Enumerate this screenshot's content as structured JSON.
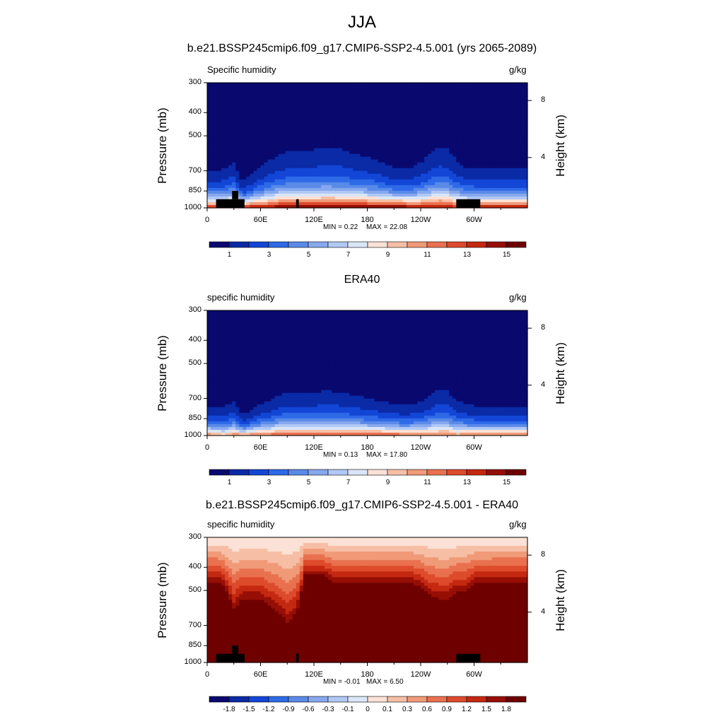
{
  "figure_title": "JJA",
  "chart_data": [
    {
      "type": "heatmap",
      "title": "b.e21.BSSP245cmip6.f09_g17.CMIP6-SSP2-4.5.001 (yrs 2065-2089)",
      "field_label": "Specific humidity",
      "units": "g/kg",
      "ylabel": "Pressure (mb)",
      "ylabel_right": "Height (km)",
      "xlim": [
        0,
        360
      ],
      "x_ticks": [
        "0",
        "60E",
        "120E",
        "180",
        "120W",
        "60W"
      ],
      "x_tick_values": [
        0,
        60,
        120,
        180,
        240,
        300
      ],
      "y_ticks": [
        "300",
        "400",
        "500",
        "700",
        "850",
        "1000"
      ],
      "y_tick_values": [
        300,
        400,
        500,
        700,
        850,
        1000
      ],
      "right_ticks": [
        "8",
        "4"
      ],
      "min_label": "MIN =   0.22",
      "max_label": "MAX =  22.08",
      "colorbar": {
        "levels": [
          0,
          1,
          2,
          3,
          4,
          5,
          6,
          7,
          8,
          9,
          10,
          11,
          12,
          13,
          14,
          15
        ],
        "labels": [
          "1",
          "3",
          "5",
          "7",
          "9",
          "11",
          "13",
          "15"
        ],
        "label_values": [
          1,
          3,
          5,
          7,
          9,
          11,
          13,
          15
        ]
      },
      "profile": {
        "lon": [
          0,
          10,
          20,
          30,
          40,
          50,
          60,
          70,
          80,
          90,
          100,
          110,
          120,
          130,
          140,
          150,
          160,
          170,
          180,
          190,
          200,
          210,
          220,
          230,
          240,
          250,
          260,
          270,
          280,
          290,
          300,
          310,
          320,
          330,
          340,
          350,
          360
        ],
        "surface_q": [
          14,
          14,
          14,
          15,
          14,
          15,
          15,
          15,
          16,
          16,
          16,
          16,
          16,
          16,
          16,
          16,
          16,
          16,
          16,
          16,
          16,
          16,
          16,
          15,
          15,
          15,
          15,
          15,
          14,
          15,
          15,
          15,
          15,
          15,
          15,
          15,
          15
        ],
        "scale_height_mb": [
          230,
          230,
          240,
          260,
          170,
          200,
          240,
          270,
          290,
          300,
          300,
          300,
          310,
          320,
          320,
          315,
          300,
          290,
          280,
          270,
          250,
          230,
          230,
          240,
          260,
          300,
          330,
          320,
          280,
          240,
          230,
          230,
          230,
          230,
          230,
          230,
          230
        ]
      },
      "blocks": [
        {
          "lon": [
            10,
            42
          ],
          "p_top": 920,
          "p_bot": 1000
        },
        {
          "lon": [
            28,
            35
          ],
          "p_top": 850,
          "p_bot": 920
        },
        {
          "lon": [
            100,
            103
          ],
          "p_top": 920,
          "p_bot": 1000
        },
        {
          "lon": [
            280,
            307
          ],
          "p_top": 920,
          "p_bot": 1000
        }
      ]
    },
    {
      "type": "heatmap",
      "title": "ERA40",
      "field_label": "specific humidity",
      "units": "g/kg",
      "ylabel": "Pressure (mb)",
      "ylabel_right": "Height (km)",
      "xlim": [
        0,
        360
      ],
      "x_ticks": [
        "0",
        "60E",
        "120E",
        "180",
        "120W",
        "60W"
      ],
      "x_tick_values": [
        0,
        60,
        120,
        180,
        240,
        300
      ],
      "y_ticks": [
        "300",
        "400",
        "500",
        "700",
        "850",
        "1000"
      ],
      "y_tick_values": [
        300,
        400,
        500,
        700,
        850,
        1000
      ],
      "right_ticks": [
        "8",
        "4"
      ],
      "min_label": "MIN =   0.13",
      "max_label": "MAX =  17.80",
      "colorbar": {
        "levels": [
          0,
          1,
          2,
          3,
          4,
          5,
          6,
          7,
          8,
          9,
          10,
          11,
          12,
          13,
          14,
          15
        ],
        "labels": [
          "1",
          "3",
          "5",
          "7",
          "9",
          "11",
          "13",
          "15"
        ],
        "label_values": [
          1,
          3,
          5,
          7,
          9,
          11,
          13,
          15
        ]
      },
      "profile": {
        "lon": [
          0,
          10,
          20,
          30,
          40,
          50,
          60,
          70,
          80,
          90,
          100,
          110,
          120,
          130,
          140,
          150,
          160,
          170,
          180,
          190,
          200,
          210,
          220,
          230,
          240,
          250,
          260,
          270,
          280,
          290,
          300,
          310,
          320,
          330,
          340,
          350,
          360
        ],
        "surface_q": [
          12,
          11,
          10,
          12,
          11,
          12,
          12,
          12,
          13,
          13,
          13,
          13,
          13,
          13,
          13,
          13,
          13,
          13,
          13,
          13,
          13,
          13,
          12,
          12,
          12,
          12,
          12,
          12,
          11,
          12,
          12,
          12,
          12,
          12,
          12,
          12,
          12
        ],
        "scale_height_mb": [
          200,
          200,
          210,
          230,
          150,
          180,
          210,
          230,
          250,
          260,
          260,
          260,
          265,
          270,
          270,
          265,
          255,
          245,
          235,
          225,
          215,
          205,
          200,
          210,
          225,
          255,
          285,
          280,
          240,
          210,
          200,
          200,
          200,
          200,
          200,
          200,
          200
        ]
      },
      "blocks": []
    },
    {
      "type": "heatmap",
      "title": "b.e21.BSSP245cmip6.f09_g17.CMIP6-SSP2-4.5.001 - ERA40",
      "field_label": "specific humidity",
      "units": "g/kg",
      "ylabel": "Pressure (mb)",
      "ylabel_right": "Height (km)",
      "xlim": [
        0,
        360
      ],
      "x_ticks": [
        "0",
        "60E",
        "120E",
        "180",
        "120W",
        "60W"
      ],
      "x_tick_values": [
        0,
        60,
        120,
        180,
        240,
        300
      ],
      "y_ticks": [
        "300",
        "400",
        "500",
        "700",
        "850",
        "1000"
      ],
      "y_tick_values": [
        300,
        400,
        500,
        700,
        850,
        1000
      ],
      "right_ticks": [
        "8",
        "4"
      ],
      "min_label": "MIN =  -0.01",
      "max_label": "MAX =   6.50",
      "colorbar": {
        "levels": [
          -2.1,
          -1.8,
          -1.5,
          -1.2,
          -0.9,
          -0.6,
          -0.3,
          -0.1,
          0,
          0.1,
          0.3,
          0.6,
          0.9,
          1.2,
          1.5,
          1.8
        ],
        "labels": [
          "-1.8",
          "-1.5",
          "-1.2",
          "-0.9",
          "-0.6",
          "-0.3",
          "-0.1",
          "0",
          "0.1",
          "0.3",
          "0.6",
          "0.9",
          "1.2",
          "1.5",
          "1.8"
        ],
        "label_values": [
          -1.8,
          -1.5,
          -1.2,
          -0.9,
          -0.6,
          -0.3,
          -0.1,
          0,
          0.1,
          0.3,
          0.6,
          0.9,
          1.2,
          1.5,
          1.8
        ]
      },
      "diff_profile": {
        "lon": [
          0,
          10,
          20,
          30,
          40,
          50,
          60,
          70,
          80,
          90,
          100,
          110,
          120,
          130,
          140,
          150,
          160,
          170,
          180,
          190,
          200,
          210,
          220,
          230,
          240,
          250,
          260,
          270,
          280,
          290,
          300,
          310,
          320,
          330,
          340,
          350,
          360
        ],
        "top_mb_of_max": [
          470,
          470,
          500,
          620,
          560,
          560,
          560,
          600,
          640,
          700,
          650,
          440,
          440,
          440,
          470,
          480,
          480,
          480,
          480,
          480,
          480,
          480,
          480,
          480,
          500,
          540,
          560,
          560,
          520,
          520,
          480,
          480,
          470,
          470,
          470,
          470,
          470
        ]
      },
      "blocks": [
        {
          "lon": [
            10,
            42
          ],
          "p_top": 920,
          "p_bot": 1000
        },
        {
          "lon": [
            28,
            35
          ],
          "p_top": 850,
          "p_bot": 920
        },
        {
          "lon": [
            100,
            103
          ],
          "p_top": 920,
          "p_bot": 1000
        },
        {
          "lon": [
            280,
            307
          ],
          "p_top": 920,
          "p_bot": 1000
        }
      ]
    }
  ]
}
